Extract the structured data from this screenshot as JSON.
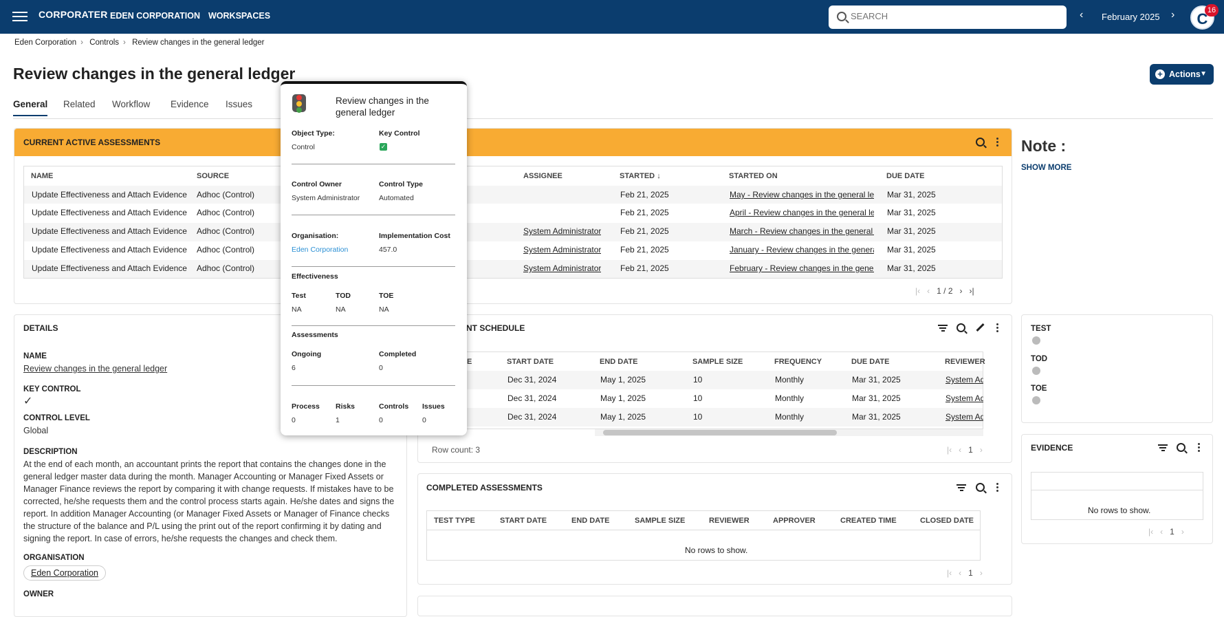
{
  "nav": {
    "logo": "CORPORATER",
    "company": "EDEN CORPORATION",
    "workspaces": "WORKSPACES",
    "search_placeholder": "SEARCH",
    "month": "February 2025",
    "avatar_initial": "C",
    "notifications": "16",
    "colors": {
      "nav_bg": "#0b3d6e",
      "accent_orange": "#f8ab33",
      "badge": "#d9142b"
    }
  },
  "breadcrumb": [
    "Eden Corporation",
    "Controls",
    "Review changes in the general ledger"
  ],
  "title": "Review changes in the general ledger",
  "actions_label": "Actions",
  "tabs": [
    "General",
    "Related",
    "Workflow",
    "Evidence",
    "Issues"
  ],
  "active_assessments": {
    "title": "CURRENT ACTIVE ASSESSMENTS",
    "columns": [
      "NAME",
      "SOURCE",
      "ASSIGNEE",
      "STARTED",
      "STARTED ON",
      "DUE DATE"
    ],
    "sort_arrow": "↓",
    "rows": [
      {
        "name": "Update Effectiveness and Attach Evidence",
        "source": "Adhoc (Control)",
        "assignee": "",
        "started": "Feb 21, 2025",
        "started_on": "May - Review changes in the general ledg...",
        "due": "Mar 31, 2025"
      },
      {
        "name": "Update Effectiveness and Attach Evidence",
        "source": "Adhoc (Control)",
        "assignee": "",
        "started": "Feb 21, 2025",
        "started_on": "April - Review changes in the general led...",
        "due": "Mar 31, 2025"
      },
      {
        "name": "Update Effectiveness and Attach Evidence",
        "source": "Adhoc (Control)",
        "assignee": "System Administrator",
        "started": "Feb 21, 2025",
        "started_on": "March - Review changes in the general le...",
        "due": "Mar 31, 2025"
      },
      {
        "name": "Update Effectiveness and Attach Evidence",
        "source": "Adhoc (Control)",
        "assignee": "System Administrator",
        "started": "Feb 21, 2025",
        "started_on": "January - Review changes in the general l...",
        "due": "Mar 31, 2025"
      },
      {
        "name": "Update Effectiveness and Attach Evidence",
        "source": "Adhoc (Control)",
        "assignee": "System Administrator",
        "started": "Feb 21, 2025",
        "started_on": "February - Review changes in the general...",
        "due": "Mar 31, 2025"
      }
    ],
    "pager": "1 / 2"
  },
  "note": {
    "title": "Note :",
    "show_more": "SHOW MORE"
  },
  "details": {
    "title": "DETAILS",
    "name_label": "NAME",
    "name_value": "Review changes in the general ledger",
    "key_control_label": "KEY CONTROL",
    "key_control_value": "✓",
    "control_level_label": "CONTROL LEVEL",
    "control_level_value": "Global",
    "description_label": "DESCRIPTION",
    "description_value": "At the end of each month, an accountant prints the report that contains the changes done in the general ledger master data during the month. Manager Accounting or Manager Fixed Assets or Manager Finance reviews the report by comparing it with change requests. If mistakes have to be corrected, he/she requests them and the control process starts again. He/she dates and signs the report. In addition Manager Accounting (or Manager Fixed Assets or Manager of Finance checks the structure of the balance and P/L using the print out of the report confirming it by dating and signing the report. In case of errors, he/she requests the changes and check them.",
    "organisation_label": "ORGANISATION",
    "organisation_value": "Eden Corporation",
    "owner_label": "OWNER"
  },
  "schedule": {
    "title": "ENT SCHEDULE",
    "columns": [
      "E",
      "START DATE",
      "END DATE",
      "SAMPLE SIZE",
      "FREQUENCY",
      "DUE DATE",
      "REVIEWER"
    ],
    "rows": [
      {
        "start": "Dec 31, 2024",
        "end": "May 1, 2025",
        "size": "10",
        "freq": "Monthly",
        "due": "Mar 31, 2025",
        "reviewer": "System Adm"
      },
      {
        "start": "Dec 31, 2024",
        "end": "May 1, 2025",
        "size": "10",
        "freq": "Monthly",
        "due": "Mar 31, 2025",
        "reviewer": "System Adm"
      },
      {
        "start": "Dec 31, 2024",
        "end": "May 1, 2025",
        "size": "10",
        "freq": "Monthly",
        "due": "Mar 31, 2025",
        "reviewer": "System Adm"
      }
    ],
    "row_count": "Row count: 3",
    "page": "1"
  },
  "completed": {
    "title": "COMPLETED ASSESSMENTS",
    "columns": [
      "TEST TYPE",
      "START DATE",
      "END DATE",
      "SAMPLE SIZE",
      "REVIEWER",
      "APPROVER",
      "CREATED TIME",
      "CLOSED DATE"
    ],
    "empty": "No rows to show.",
    "page": "1"
  },
  "effect": {
    "test": "TEST",
    "tod": "TOD",
    "toe": "TOE"
  },
  "evidence": {
    "title": "EVIDENCE",
    "empty": "No rows to show.",
    "page": "1"
  },
  "popup": {
    "title": "Review changes in the general ledger",
    "object_type_label": "Object Type:",
    "object_type": "Control",
    "key_control_label": "Key Control",
    "control_owner_label": "Control Owner",
    "control_owner": "System Administrator",
    "control_type_label": "Control Type",
    "control_type": "Automated",
    "organisation_label": "Organisation:",
    "organisation": "Eden Corporation",
    "impl_cost_label": "Implementation Cost",
    "impl_cost": "457.0",
    "effectiveness_label": "Effectiveness",
    "test_label": "Test",
    "test": "NA",
    "tod_label": "TOD",
    "tod": "NA",
    "toe_label": "TOE",
    "toe": "NA",
    "assessments_label": "Assessments",
    "ongoing_label": "Ongoing",
    "ongoing": "6",
    "completed_label": "Completed",
    "completed": "0",
    "process_label": "Process",
    "process": "0",
    "risks_label": "Risks",
    "risks": "1",
    "controls_label": "Controls",
    "controls": "0",
    "issues_label": "Issues",
    "issues": "0"
  }
}
